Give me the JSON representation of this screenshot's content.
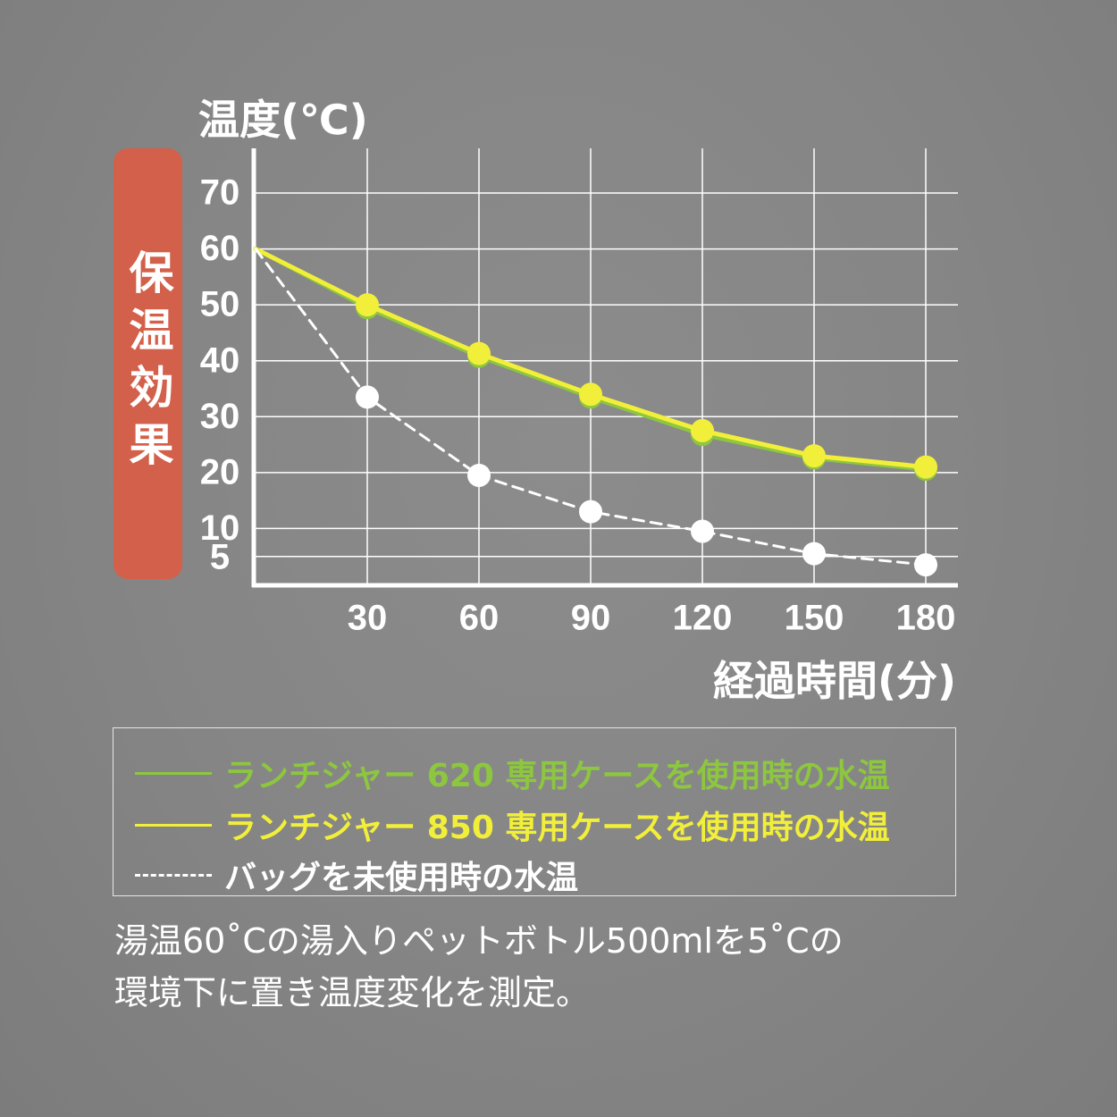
{
  "badge": {
    "text": "保温効果",
    "color": "#d3604a"
  },
  "chart_data": {
    "type": "line",
    "ylabel": "温度(℃)",
    "xlabel": "経過時間(分)",
    "x_ticks": [
      "30",
      "60",
      "90",
      "120",
      "150",
      "180"
    ],
    "y_ticks": [
      "5",
      "10",
      "20",
      "30",
      "40",
      "50",
      "60",
      "70"
    ],
    "xlim": [
      0,
      180
    ],
    "ylim": [
      0,
      70
    ],
    "grid": true,
    "legend_position": "bottom",
    "series": [
      {
        "name": "ランチジャー620専用ケースを使用時の水温",
        "color": "#8dc63f",
        "style": "solid",
        "x": [
          0,
          30,
          60,
          90,
          120,
          150,
          180
        ],
        "y": [
          60,
          49.5,
          40.8,
          33.5,
          26.8,
          22.6,
          20.6
        ]
      },
      {
        "name": "ランチジャー850専用ケースを使用時の水温",
        "color": "#f2ef3a",
        "style": "solid",
        "x": [
          0,
          30,
          60,
          90,
          120,
          150,
          180
        ],
        "y": [
          60,
          50,
          41.3,
          34,
          27.5,
          23,
          21
        ]
      },
      {
        "name": "バッグを未使用時の水温",
        "color": "#ffffff",
        "style": "dashed",
        "x": [
          0,
          30,
          60,
          90,
          120,
          150,
          180
        ],
        "y": [
          60,
          33.5,
          19.5,
          13,
          9.5,
          5.5,
          3.5
        ]
      }
    ]
  },
  "legend": {
    "items": [
      {
        "dash": "———",
        "label": "ランチジャー 620 専用ケースを使用時の水温",
        "color": "#8dc63f"
      },
      {
        "dash": "———",
        "label": "ランチジャー 850 専用ケースを使用時の水温",
        "color": "#f2ef3a"
      },
      {
        "dash": "------",
        "label": "バッグを未使用時の水温",
        "color": "#ffffff"
      }
    ]
  },
  "caption": {
    "line1": "湯温60˚Cの湯入りペットボトル500mlを5˚Cの",
    "line2": "環境下に置き温度変化を測定。"
  }
}
